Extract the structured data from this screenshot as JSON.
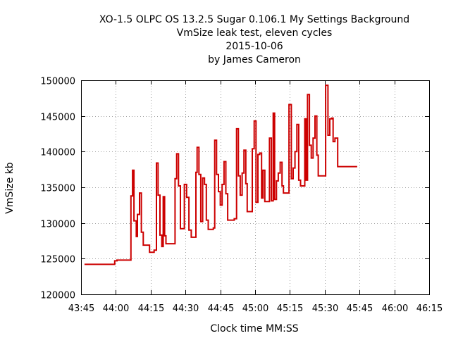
{
  "chart_data": {
    "type": "line",
    "title_lines": [
      "XO-1.5 OLPC OS 13.2.5 Sugar 0.106.1 My Settings Background",
      "VmSize leak test, eleven cycles",
      "2015-10-06",
      "by James Cameron"
    ],
    "xlabel": "Clock time MM:SS",
    "ylabel": "VmSize kb",
    "x_unit": "seconds",
    "xlim": [
      2625,
      2775
    ],
    "ylim": [
      120000,
      150000
    ],
    "x_ticks": [
      {
        "value": 2625,
        "label": "43:45"
      },
      {
        "value": 2640,
        "label": "44:00"
      },
      {
        "value": 2655,
        "label": "44:15"
      },
      {
        "value": 2670,
        "label": "44:30"
      },
      {
        "value": 2685,
        "label": "44:45"
      },
      {
        "value": 2700,
        "label": "45:00"
      },
      {
        "value": 2715,
        "label": "45:15"
      },
      {
        "value": 2730,
        "label": "45:30"
      },
      {
        "value": 2745,
        "label": "45:45"
      },
      {
        "value": 2760,
        "label": "46:00"
      },
      {
        "value": 2775,
        "label": "46:15"
      }
    ],
    "y_ticks": [
      {
        "value": 120000,
        "label": "120000"
      },
      {
        "value": 125000,
        "label": "125000"
      },
      {
        "value": 130000,
        "label": "130000"
      },
      {
        "value": 135000,
        "label": "135000"
      },
      {
        "value": 140000,
        "label": "140000"
      },
      {
        "value": 145000,
        "label": "145000"
      },
      {
        "value": 150000,
        "label": "150000"
      }
    ],
    "grid": true,
    "step": true,
    "series": [
      {
        "color": "#cc0000",
        "points": [
          [
            2626.5,
            124200
          ],
          [
            2639.5,
            124700
          ],
          [
            2640.5,
            124800
          ],
          [
            2646.5,
            133800
          ],
          [
            2647.2,
            137400
          ],
          [
            2647.8,
            130300
          ],
          [
            2648.8,
            128100
          ],
          [
            2649.3,
            131200
          ],
          [
            2650.2,
            134200
          ],
          [
            2651.0,
            128700
          ],
          [
            2651.8,
            126900
          ],
          [
            2654.5,
            125900
          ],
          [
            2656.5,
            126200
          ],
          [
            2657.5,
            138400
          ],
          [
            2658.2,
            133900
          ],
          [
            2659.0,
            128300
          ],
          [
            2659.8,
            126700
          ],
          [
            2660.4,
            133700
          ],
          [
            2661.0,
            128200
          ],
          [
            2661.6,
            127100
          ],
          [
            2665.5,
            136200
          ],
          [
            2666.2,
            139700
          ],
          [
            2667.0,
            135200
          ],
          [
            2667.8,
            129200
          ],
          [
            2669.5,
            135400
          ],
          [
            2670.5,
            133600
          ],
          [
            2671.5,
            129000
          ],
          [
            2672.5,
            128000
          ],
          [
            2674.5,
            137100
          ],
          [
            2675.0,
            140600
          ],
          [
            2675.8,
            136800
          ],
          [
            2676.6,
            130200
          ],
          [
            2677.4,
            136300
          ],
          [
            2678.2,
            135400
          ],
          [
            2679.0,
            130400
          ],
          [
            2679.8,
            129100
          ],
          [
            2682.0,
            129300
          ],
          [
            2682.6,
            141600
          ],
          [
            2683.4,
            136800
          ],
          [
            2684.2,
            134400
          ],
          [
            2685.0,
            132500
          ],
          [
            2685.8,
            135400
          ],
          [
            2686.6,
            138600
          ],
          [
            2687.4,
            134100
          ],
          [
            2688.2,
            130400
          ],
          [
            2691.0,
            130600
          ],
          [
            2692.0,
            143200
          ],
          [
            2692.8,
            136600
          ],
          [
            2693.6,
            133900
          ],
          [
            2694.4,
            137000
          ],
          [
            2695.2,
            140200
          ],
          [
            2696.0,
            135500
          ],
          [
            2696.6,
            131600
          ],
          [
            2698.8,
            140400
          ],
          [
            2699.6,
            144300
          ],
          [
            2700.4,
            132900
          ],
          [
            2701.2,
            139600
          ],
          [
            2702.0,
            139800
          ],
          [
            2702.8,
            133500
          ],
          [
            2703.4,
            137400
          ],
          [
            2704.2,
            133000
          ],
          [
            2706.2,
            141900
          ],
          [
            2707.0,
            133100
          ],
          [
            2707.8,
            145400
          ],
          [
            2708.4,
            133300
          ],
          [
            2709.2,
            135900
          ],
          [
            2710.0,
            137000
          ],
          [
            2710.8,
            138500
          ],
          [
            2711.6,
            135200
          ],
          [
            2712.2,
            134200
          ],
          [
            2714.6,
            146600
          ],
          [
            2715.6,
            136200
          ],
          [
            2716.4,
            137700
          ],
          [
            2717.2,
            140000
          ],
          [
            2718.0,
            143800
          ],
          [
            2718.8,
            136000
          ],
          [
            2719.6,
            135200
          ],
          [
            2721.4,
            144600
          ],
          [
            2722.0,
            136000
          ],
          [
            2722.6,
            148000
          ],
          [
            2723.4,
            140900
          ],
          [
            2724.2,
            139100
          ],
          [
            2725.0,
            141900
          ],
          [
            2725.8,
            145000
          ],
          [
            2726.6,
            139500
          ],
          [
            2727.2,
            136600
          ],
          [
            2730.4,
            149300
          ],
          [
            2731.4,
            142300
          ],
          [
            2732.2,
            144600
          ],
          [
            2733.0,
            144700
          ],
          [
            2733.6,
            141400
          ],
          [
            2734.4,
            141900
          ],
          [
            2735.6,
            137900
          ],
          [
            2744.0,
            137900
          ]
        ]
      }
    ]
  }
}
